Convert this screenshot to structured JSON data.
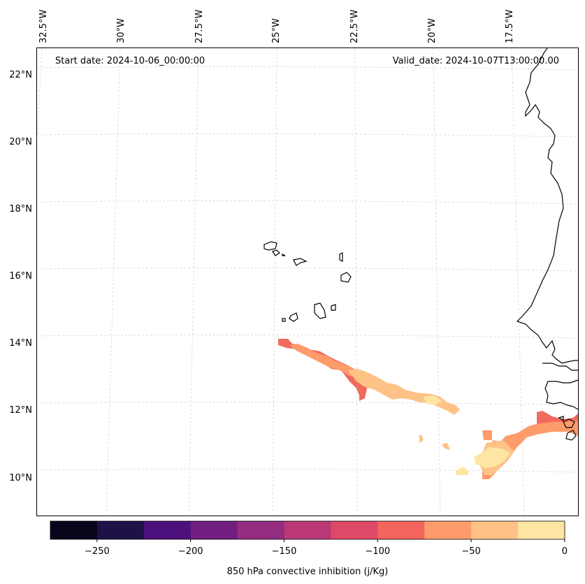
{
  "header": {
    "start_date": "Start date: 2024-10-06_00:00:00",
    "valid_date": "Valid_date: 2024-10-07T13:00:00.00"
  },
  "axes": {
    "lon_labels": [
      "32.5°W",
      "30°W",
      "27.5°W",
      "25°W",
      "22.5°W",
      "20°W",
      "17.5°W"
    ],
    "lat_labels": [
      "22°N",
      "20°N",
      "18°N",
      "16°N",
      "14°N",
      "12°N",
      "10°N"
    ]
  },
  "colorbar": {
    "label": "850 hPa convective inhibition (j/Kg)",
    "ticks": [
      "−250",
      "−200",
      "−150",
      "−100",
      "−50",
      "0"
    ],
    "colors": [
      "#06051a",
      "#1e1147",
      "#4c117d",
      "#721f81",
      "#942c80",
      "#b93875",
      "#de4968",
      "#f3655c",
      "#fe9b6b",
      "#fec287",
      "#fde6a4"
    ]
  },
  "fill_colors": {
    "dark": "#f06b5e",
    "mid": "#fe9b6b",
    "light": "#fec287",
    "pale": "#fde6a4"
  }
}
